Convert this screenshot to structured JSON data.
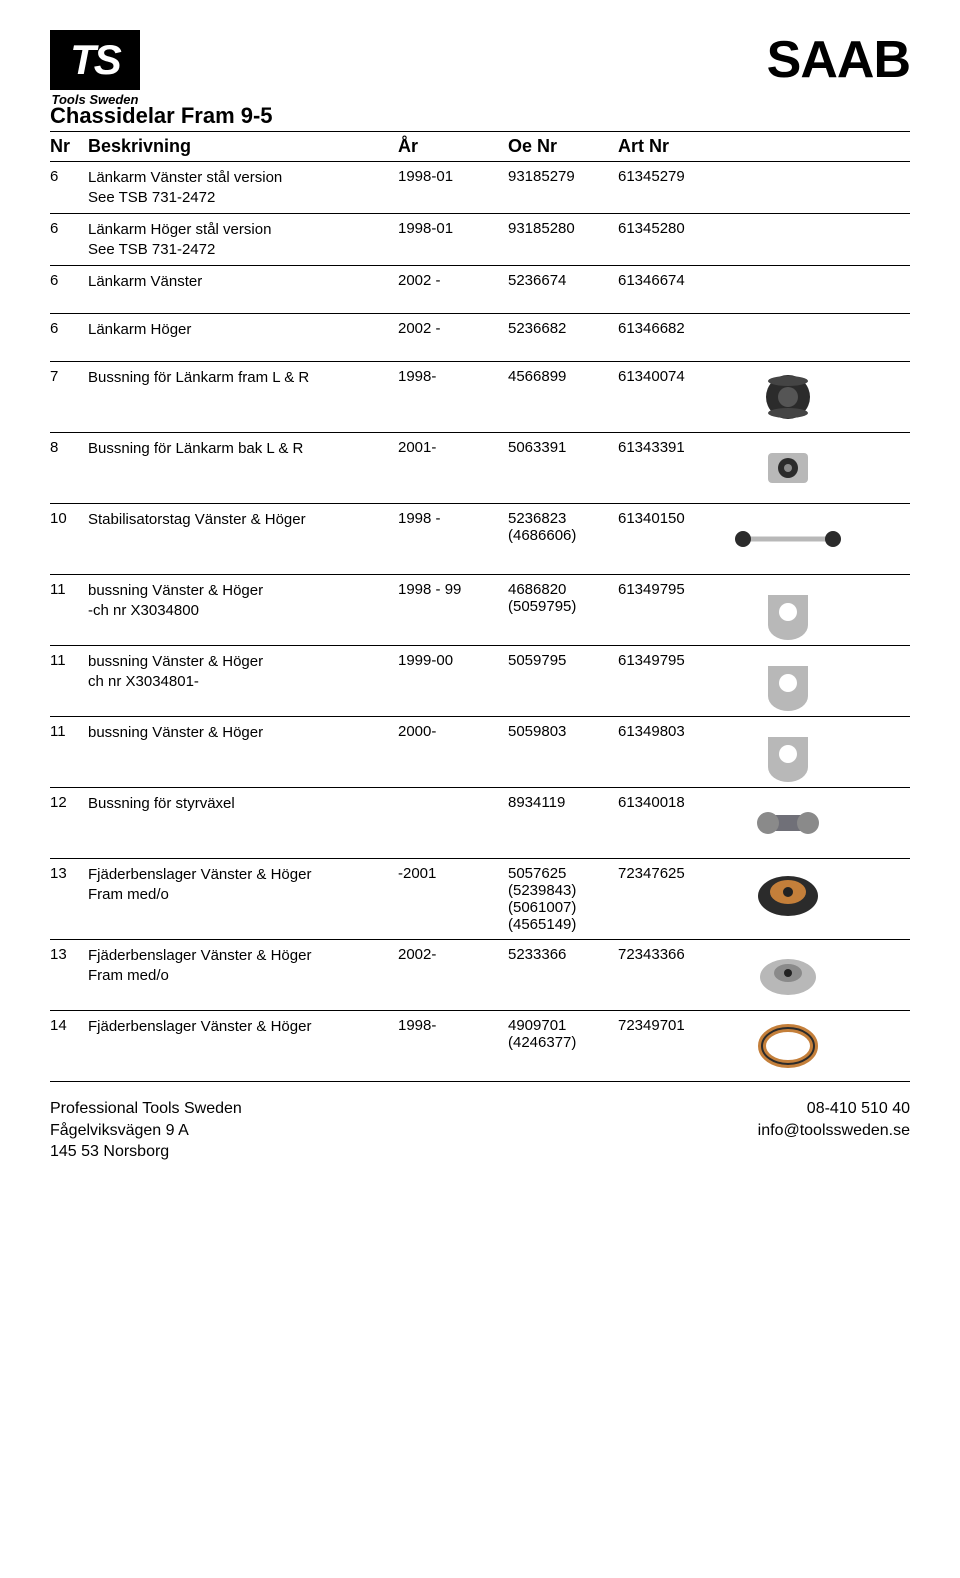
{
  "logo": {
    "text": "TS",
    "subtitle": "Tools Sweden"
  },
  "brand": "SAAB",
  "page_title": "Chassidelar Fram 9-5",
  "columns": {
    "nr": "Nr",
    "desc": "Beskrivning",
    "year": "År",
    "oe": "Oe Nr",
    "art": "Art Nr"
  },
  "rows": [
    {
      "nr": "6",
      "desc": "Länkarm Vänster stål version",
      "desc2": "See TSB 731-2472",
      "year": "1998-01",
      "oe": "93185279",
      "art": "61345279"
    },
    {
      "nr": "6",
      "desc": "Länkarm Höger stål version",
      "desc2": "See TSB 731-2472",
      "year": "1998-01",
      "oe": "93185280",
      "art": "61345280"
    },
    {
      "nr": "6",
      "desc": "Länkarm Vänster",
      "desc2": "",
      "year": "2002 -",
      "oe": "5236674",
      "art": "61346674"
    },
    {
      "nr": "6",
      "desc": "Länkarm Höger",
      "desc2": "",
      "year": "2002 -",
      "oe": "5236682",
      "art": "61346682"
    },
    {
      "nr": "7",
      "desc": "Bussning för Länkarm fram L & R",
      "desc2": "",
      "year": "1998-",
      "oe": "4566899",
      "art": "61340074",
      "img": "bushing-round"
    },
    {
      "nr": "8",
      "desc": "Bussning för Länkarm bak L & R",
      "desc2": "",
      "year": "2001-",
      "oe": "5063391",
      "art": "61343391",
      "img": "bushing-cyl"
    },
    {
      "nr": "10",
      "desc": "Stabilisatorstag Vänster & Höger",
      "desc2": "",
      "year": "1998 -",
      "oe": "5236823",
      "oe2": "(4686606)",
      "art": "61340150",
      "img": "stabilizer-link"
    },
    {
      "nr": "11",
      "desc": " bussning Vänster & Höger",
      "desc2": "-ch nr X3034800",
      "year": "1998 - 99",
      "oe": "4686820",
      "oe2": "(5059795)",
      "art": "61349795",
      "img": "bushing-d"
    },
    {
      "nr": "11",
      "desc": " bussning Vänster & Höger",
      "desc2": "ch nr X3034801-",
      "year": "1999-00",
      "oe": "5059795",
      "art": "61349795",
      "img": "bushing-d"
    },
    {
      "nr": "11",
      "desc": " bussning Vänster & Höger",
      "desc2": "",
      "year": "2000-",
      "oe": "5059803",
      "art": "61349803",
      "img": "bushing-d"
    },
    {
      "nr": "12",
      "desc": "Bussning för styrväxel",
      "desc2": "",
      "year": "",
      "oe": "8934119",
      "art": "61340018",
      "img": "steering-bush"
    },
    {
      "nr": "13",
      "desc": "Fjäderbenslager  Vänster & Höger",
      "desc2": "Fram med/o",
      "year": "-2001",
      "oe": "5057625",
      "oe2": "(5239843)",
      "oe3": "(5061007)",
      "oe4": "(4565149)",
      "art": "72347625",
      "img": "strut-mount"
    },
    {
      "nr": "13",
      "desc": "Fjäderbenslager  Vänster & Höger",
      "desc2": "Fram med/o",
      "year": "2002-",
      "oe": "5233366",
      "art": "72343366",
      "img": "strut-mount2"
    },
    {
      "nr": "14",
      "desc": "Fjäderbenslager  Vänster & Höger",
      "desc2": "",
      "year": "1998-",
      "oe": "4909701",
      "oe2": "(4246377)",
      "art": "72349701",
      "img": "bearing-ring"
    }
  ],
  "footer": {
    "left": [
      "Professional Tools Sweden",
      "Fågelviksvägen 9 A",
      "145 53 Norsborg"
    ],
    "right": [
      "08-410 510 40",
      "info@toolssweden.se"
    ]
  },
  "svg_colors": {
    "metal": "#b8b8b8",
    "metal_dark": "#8a8a8a",
    "rubber": "#2b2b2b",
    "orange": "#c47f3a",
    "steel": "#707078"
  }
}
